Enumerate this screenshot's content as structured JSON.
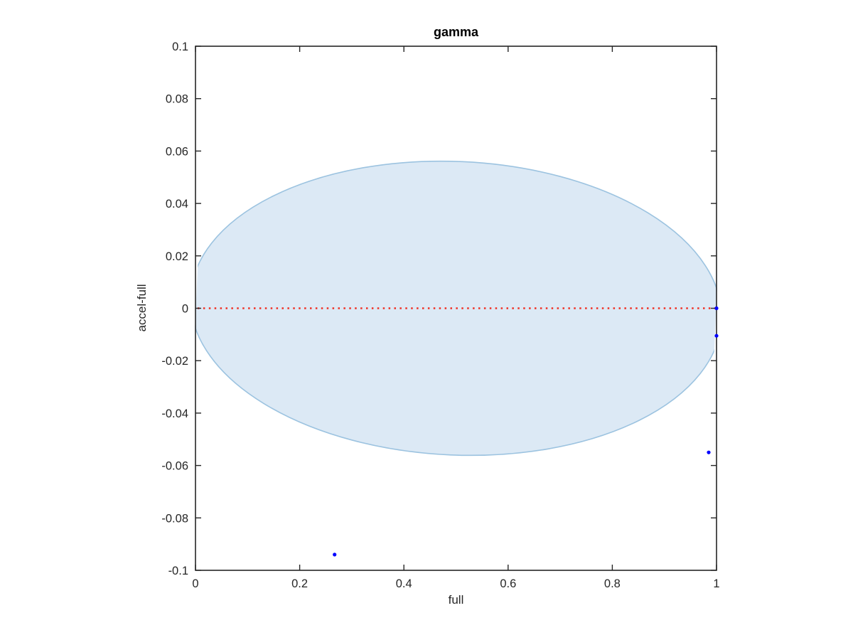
{
  "figure": {
    "background": "#ffffff"
  },
  "chart_data": {
    "type": "scatter",
    "title": "gamma",
    "xlabel": "full",
    "ylabel": "accel-full",
    "xlim": [
      0,
      1
    ],
    "ylim": [
      -0.1,
      0.1
    ],
    "grid": false,
    "box": true,
    "axis_color": "#262626",
    "tick_label_color": "#262626",
    "xticks": [
      0,
      0.2,
      0.4,
      0.6,
      0.8,
      1
    ],
    "xtick_labels": [
      "0",
      "0.2",
      "0.4",
      "0.6",
      "0.8",
      "1"
    ],
    "yticks": [
      0.1,
      0.08,
      0.06,
      0.04,
      0.02,
      0,
      -0.02,
      -0.04,
      -0.06,
      -0.08,
      -0.1
    ],
    "ytick_labels": [
      "0.1",
      "0.08",
      "0.06",
      "0.04",
      "0.02",
      "0",
      "-0.02",
      "-0.04",
      "-0.06",
      "-0.08",
      "-0.1"
    ],
    "region": {
      "shape": "ellipse",
      "center_x": 0.5,
      "center_y": 0.0,
      "rx": 0.51,
      "ry": 0.056,
      "tilt_deg": 2.6,
      "fill": "#dce9f5",
      "edge": "#9cc3e0",
      "edge_width": 1.6
    },
    "zero_line": {
      "y": 0,
      "x_start": 0,
      "x_end": 1,
      "color": "#f03024",
      "style": "dotted",
      "width": 2.5
    },
    "points": {
      "color": "#0000ff",
      "marker": "dot",
      "radius": 2.6,
      "data": [
        {
          "x": 1.0,
          "y": 0.0
        },
        {
          "x": 1.0,
          "y": -0.0105
        },
        {
          "x": 0.985,
          "y": -0.055
        },
        {
          "x": 0.267,
          "y": -0.094
        }
      ]
    }
  }
}
